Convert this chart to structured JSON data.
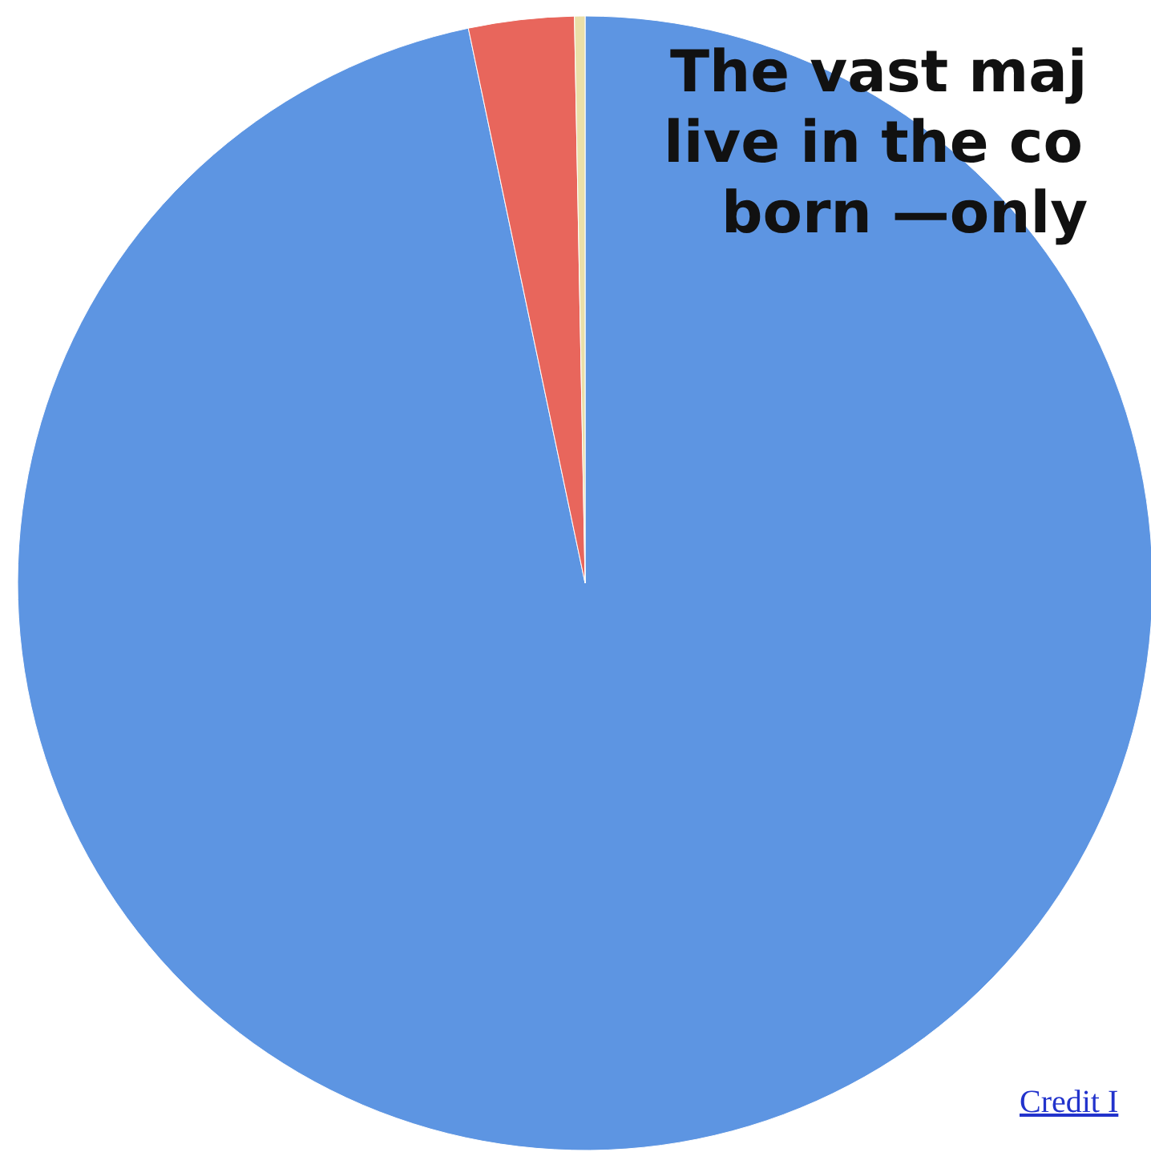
{
  "chart_data": {
    "type": "pie",
    "categories": [
      null,
      null,
      null
    ],
    "values": [
      96.7,
      3,
      0.3
    ],
    "colors": [
      "#5d95e2",
      "#e8665c",
      "#eadfa8"
    ],
    "annotations": [
      "The vast maj",
      "live in the co",
      "born —only",
      "Credit I"
    ]
  }
}
